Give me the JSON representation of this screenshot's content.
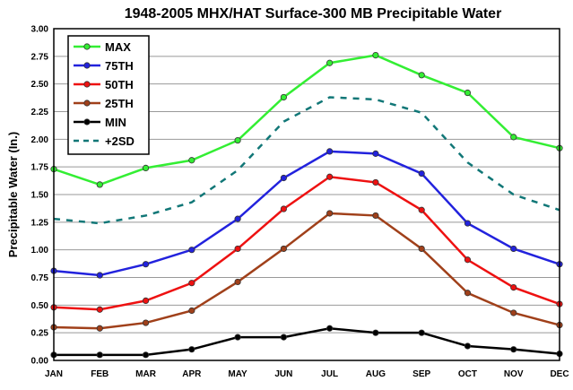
{
  "chart_data": {
    "type": "line",
    "title": "1948-2005 MHX/HAT Surface-300 MB Precipitable Water",
    "xlabel": "",
    "ylabel": "Precipitable Water (In.)",
    "categories": [
      "JAN",
      "FEB",
      "MAR",
      "APR",
      "MAY",
      "JUN",
      "JUL",
      "AUG",
      "SEP",
      "OCT",
      "NOV",
      "DEC"
    ],
    "ylim": [
      0,
      3.0
    ],
    "yticks": [
      "0.00",
      "0.25",
      "0.50",
      "0.75",
      "1.00",
      "1.25",
      "1.50",
      "1.75",
      "2.00",
      "2.25",
      "2.50",
      "2.75",
      "3.00"
    ],
    "grid": "horizontal",
    "legend_position": "top-left",
    "series": [
      {
        "name": "MAX",
        "color": "#33ee33",
        "style": "solid-marker",
        "values": [
          1.73,
          1.59,
          1.74,
          1.81,
          1.99,
          2.38,
          2.69,
          2.76,
          2.58,
          2.42,
          2.02,
          1.92
        ]
      },
      {
        "name": "75TH",
        "color": "#2222dd",
        "style": "solid-marker",
        "values": [
          0.81,
          0.77,
          0.87,
          1.0,
          1.28,
          1.65,
          1.89,
          1.87,
          1.69,
          1.24,
          1.01,
          0.87
        ]
      },
      {
        "name": "50TH",
        "color": "#ee1111",
        "style": "solid-marker",
        "values": [
          0.48,
          0.46,
          0.54,
          0.7,
          1.01,
          1.37,
          1.66,
          1.61,
          1.36,
          0.91,
          0.66,
          0.51
        ]
      },
      {
        "name": "25TH",
        "color": "#a0401a",
        "style": "solid-marker",
        "values": [
          0.3,
          0.29,
          0.34,
          0.45,
          0.71,
          1.01,
          1.33,
          1.31,
          1.01,
          0.61,
          0.43,
          0.32
        ]
      },
      {
        "name": "MIN",
        "color": "#000000",
        "style": "solid-marker",
        "values": [
          0.05,
          0.05,
          0.05,
          0.1,
          0.21,
          0.21,
          0.29,
          0.25,
          0.25,
          0.13,
          0.1,
          0.06
        ]
      },
      {
        "name": "+2SD",
        "color": "#117777",
        "style": "dashed",
        "values": [
          1.28,
          1.24,
          1.31,
          1.43,
          1.72,
          2.16,
          2.38,
          2.36,
          2.24,
          1.79,
          1.5,
          1.36
        ]
      }
    ]
  }
}
